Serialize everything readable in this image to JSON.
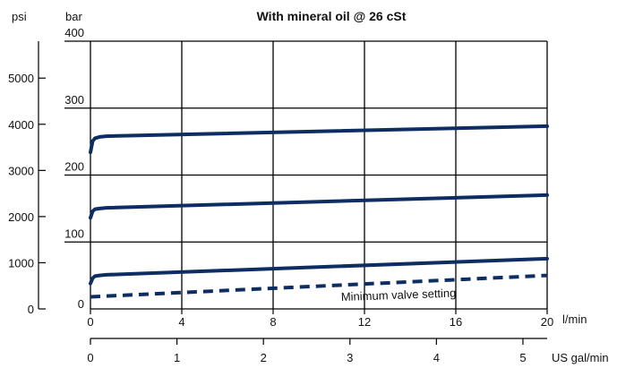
{
  "chart_data": {
    "type": "line",
    "title": "With mineral oil @ 26 cSt",
    "y_units": {
      "left": "psi",
      "right": "bar"
    },
    "x_units": {
      "primary": "l/min",
      "secondary": "US gal/min"
    },
    "ylim_bar": [
      0,
      400
    ],
    "ylim_psi": [
      0,
      5800
    ],
    "xlim_lpm": [
      0,
      20
    ],
    "xlim_usgpm": [
      0,
      5.28
    ],
    "bar_ticks": [
      "0",
      "100",
      "200",
      "300",
      "400"
    ],
    "psi_ticks": [
      "0",
      "1000",
      "2000",
      "3000",
      "4000",
      "5000"
    ],
    "lpm_ticks": [
      "0",
      "4",
      "8",
      "12",
      "16",
      "20"
    ],
    "usgpm_ticks": [
      "0",
      "1",
      "2",
      "3",
      "4",
      "5"
    ],
    "grid": true,
    "series_color": "#0d2d63",
    "series": [
      {
        "style": "solid",
        "x": [
          0,
          0.1,
          0.2,
          0.4,
          0.7,
          20
        ],
        "y": [
          234,
          251,
          255,
          257,
          258,
          273
        ]
      },
      {
        "style": "solid",
        "x": [
          0,
          0.1,
          0.2,
          0.4,
          0.7,
          20
        ],
        "y": [
          136,
          146,
          149,
          150,
          151,
          170
        ]
      },
      {
        "style": "solid",
        "x": [
          0,
          0.1,
          0.2,
          0.4,
          0.7,
          20
        ],
        "y": [
          38,
          46,
          49,
          50,
          51,
          75
        ]
      },
      {
        "style": "dashed",
        "x": [
          0,
          20
        ],
        "y": [
          18,
          50
        ]
      }
    ],
    "annotations": [
      {
        "text": "Minimum valve setting",
        "x": 13.5,
        "y": 15
      }
    ]
  }
}
